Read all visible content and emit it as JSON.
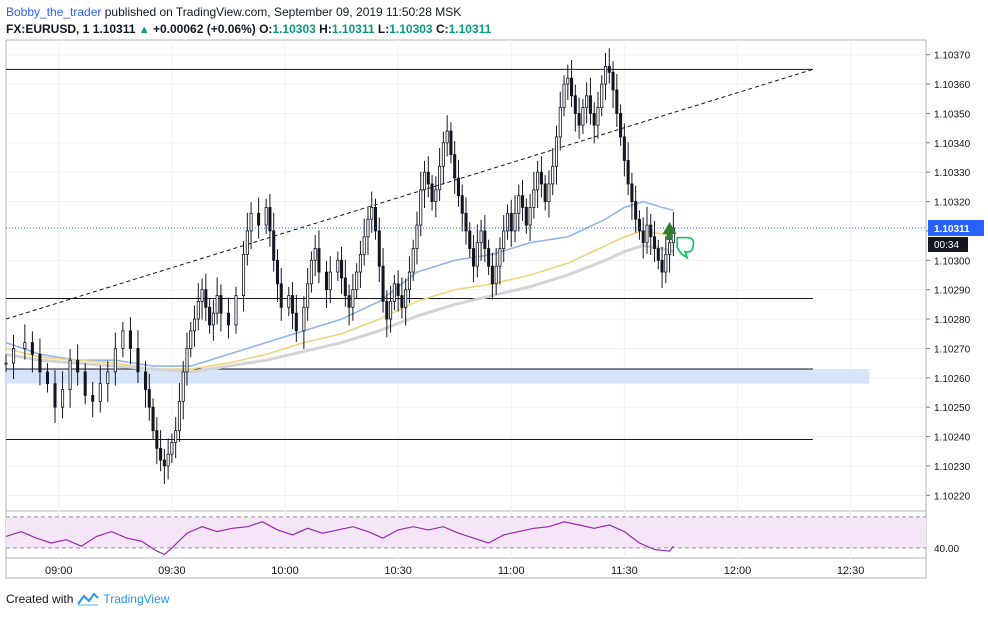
{
  "header": {
    "author": "Bobby_the_trader",
    "published": "published on TradingView.com, September 09, 2019 11:50:28 MSK",
    "symbol": "FX:EURUSD, 1",
    "last": "1.10311",
    "change": "+0.00062 (+0.06%)",
    "o_label": "O:",
    "o_value": "1.10303",
    "h_label": "H:",
    "h_value": "1.10311",
    "l_label": "L:",
    "l_value": "1.10303",
    "c_label": "C:",
    "c_value": "1.10311"
  },
  "footer": {
    "created_with": "Created with",
    "brand": "TradingView"
  },
  "colors": {
    "up": "#131722",
    "down": "#131722",
    "upFill": "#ffffff",
    "downFill": "#131722",
    "ma_fast": "#90b8e6",
    "ma_mid": "#f2d27a",
    "ma_slow": "#d4d4d4",
    "zone": "#c9dcf8",
    "rsi_line": "#9c27b0",
    "rsi_bg": "#f3e5f5",
    "price_label": "#2962ff",
    "arrow": "#2e7d32",
    "thumb": "#00c853"
  },
  "chart_data": {
    "type": "candlestick",
    "interval_minutes": 1,
    "ylim": [
      1.10215,
      1.10375
    ],
    "y_ticks": [
      "1.10370",
      "1.10360",
      "1.10350",
      "1.10340",
      "1.10330",
      "1.10320",
      "1.10310",
      "1.10300",
      "1.10290",
      "1.10280",
      "1.10270",
      "1.10260",
      "1.10250",
      "1.10240",
      "1.10230",
      "1.10220"
    ],
    "x_ticks": [
      "09:00",
      "09:30",
      "10:00",
      "10:30",
      "11:00",
      "11:30",
      "12:00",
      "12:30"
    ],
    "x_tick_minutes": [
      0,
      30,
      60,
      90,
      120,
      150,
      180,
      210
    ],
    "xlim_minutes": [
      -14,
      230
    ],
    "last_price_label": "1.10311",
    "countdown_label": "00:34",
    "rsi_label": "40.00",
    "close_path": [
      [
        -14,
        1.10265
      ],
      [
        -12,
        1.1027
      ],
      [
        -9,
        1.10272
      ],
      [
        -7,
        1.10268
      ],
      [
        -5,
        1.10262
      ],
      [
        -3,
        1.10258
      ],
      [
        -1,
        1.1025
      ],
      [
        1,
        1.10256
      ],
      [
        3,
        1.10266
      ],
      [
        5,
        1.10262
      ],
      [
        7,
        1.10254
      ],
      [
        9,
        1.10252
      ],
      [
        11,
        1.10258
      ],
      [
        13,
        1.10262
      ],
      [
        15,
        1.1027
      ],
      [
        17,
        1.10276
      ],
      [
        19,
        1.1027
      ],
      [
        21,
        1.10262
      ],
      [
        23,
        1.10256
      ],
      [
        24,
        1.1025
      ],
      [
        25,
        1.10242
      ],
      [
        26,
        1.10236
      ],
      [
        27,
        1.10232
      ],
      [
        28,
        1.1023
      ],
      [
        29,
        1.10234
      ],
      [
        30,
        1.10238
      ],
      [
        31,
        1.10242
      ],
      [
        32,
        1.10252
      ],
      [
        33,
        1.10262
      ],
      [
        34,
        1.1027
      ],
      [
        35,
        1.10276
      ],
      [
        36,
        1.1028
      ],
      [
        37,
        1.10286
      ],
      [
        38,
        1.1029
      ],
      [
        39,
        1.10284
      ],
      [
        40,
        1.10278
      ],
      [
        41,
        1.10282
      ],
      [
        42,
        1.10288
      ],
      [
        43,
        1.10282
      ],
      [
        45,
        1.10278
      ],
      [
        47,
        1.10288
      ],
      [
        49,
        1.10302
      ],
      [
        50,
        1.1031
      ],
      [
        51,
        1.10316
      ],
      [
        53,
        1.10312
      ],
      [
        55,
        1.10318
      ],
      [
        56,
        1.1031
      ],
      [
        57,
        1.103
      ],
      [
        58,
        1.10292
      ],
      [
        59,
        1.10284
      ],
      [
        61,
        1.10288
      ],
      [
        62,
        1.10282
      ],
      [
        63,
        1.10276
      ],
      [
        65,
        1.10284
      ],
      [
        66,
        1.10292
      ],
      [
        67,
        1.103
      ],
      [
        68,
        1.10304
      ],
      [
        69,
        1.10296
      ],
      [
        71,
        1.1029
      ],
      [
        72,
        1.10296
      ],
      [
        74,
        1.103
      ],
      [
        75,
        1.10294
      ],
      [
        76,
        1.10288
      ],
      [
        77,
        1.10284
      ],
      [
        78,
        1.1029
      ],
      [
        79,
        1.10296
      ],
      [
        80,
        1.10302
      ],
      [
        81,
        1.10308
      ],
      [
        82,
        1.10314
      ],
      [
        83,
        1.10318
      ],
      [
        84,
        1.1031
      ],
      [
        85,
        1.10298
      ],
      [
        86,
        1.10286
      ],
      [
        87,
        1.1028
      ],
      [
        88,
        1.10286
      ],
      [
        89,
        1.10292
      ],
      [
        90,
        1.10288
      ],
      [
        91,
        1.10284
      ],
      [
        92,
        1.1029
      ],
      [
        93,
        1.10296
      ],
      [
        94,
        1.10304
      ],
      [
        95,
        1.10312
      ],
      [
        96,
        1.10324
      ],
      [
        97,
        1.1033
      ],
      [
        98,
        1.10326
      ],
      [
        99,
        1.1032
      ],
      [
        100,
        1.10324
      ],
      [
        101,
        1.10332
      ],
      [
        102,
        1.1034
      ],
      [
        103,
        1.10344
      ],
      [
        104,
        1.10336
      ],
      [
        105,
        1.10328
      ],
      [
        106,
        1.10322
      ],
      [
        107,
        1.10316
      ],
      [
        108,
        1.1031
      ],
      [
        109,
        1.10304
      ],
      [
        110,
        1.10298
      ],
      [
        111,
        1.10306
      ],
      [
        112,
        1.1031
      ],
      [
        113,
        1.10304
      ],
      [
        114,
        1.10298
      ],
      [
        115,
        1.10292
      ],
      [
        116,
        1.10298
      ],
      [
        117,
        1.10304
      ],
      [
        118,
        1.1031
      ],
      [
        119,
        1.10316
      ],
      [
        120,
        1.1031
      ],
      [
        121,
        1.10316
      ],
      [
        122,
        1.10322
      ],
      [
        123,
        1.10318
      ],
      [
        124,
        1.10312
      ],
      [
        125,
        1.10318
      ],
      [
        126,
        1.10324
      ],
      [
        127,
        1.1033
      ],
      [
        128,
        1.10326
      ],
      [
        129,
        1.1032
      ],
      [
        130,
        1.10326
      ],
      [
        131,
        1.10332
      ],
      [
        132,
        1.10342
      ],
      [
        133,
        1.10352
      ],
      [
        134,
        1.1036
      ],
      [
        135,
        1.10362
      ],
      [
        136,
        1.10356
      ],
      [
        137,
        1.1035
      ],
      [
        138,
        1.10346
      ],
      [
        139,
        1.10352
      ],
      [
        140,
        1.10356
      ],
      [
        141,
        1.1035
      ],
      [
        142,
        1.10346
      ],
      [
        143,
        1.10352
      ],
      [
        144,
        1.1036
      ],
      [
        145,
        1.10366
      ],
      [
        146,
        1.10364
      ],
      [
        147,
        1.10358
      ],
      [
        148,
        1.1035
      ],
      [
        149,
        1.10342
      ],
      [
        150,
        1.10334
      ],
      [
        151,
        1.10326
      ],
      [
        152,
        1.1032
      ],
      [
        153,
        1.10314
      ],
      [
        154,
        1.1031
      ],
      [
        155,
        1.10306
      ],
      [
        156,
        1.10312
      ],
      [
        157,
        1.10308
      ],
      [
        158,
        1.10304
      ],
      [
        159,
        1.103
      ],
      [
        160,
        1.10296
      ],
      [
        161,
        1.10302
      ],
      [
        162,
        1.10306
      ],
      [
        163,
        1.10311
      ]
    ],
    "series": [
      {
        "name": "MA fast",
        "color_key": "ma_fast",
        "points": [
          [
            -14,
            1.10272
          ],
          [
            -5,
            1.10268
          ],
          [
            5,
            1.10266
          ],
          [
            15,
            1.10266
          ],
          [
            25,
            1.10264
          ],
          [
            35,
            1.10264
          ],
          [
            45,
            1.10268
          ],
          [
            55,
            1.10272
          ],
          [
            65,
            1.10276
          ],
          [
            75,
            1.1028
          ],
          [
            85,
            1.10286
          ],
          [
            95,
            1.10296
          ],
          [
            105,
            1.103
          ],
          [
            115,
            1.10302
          ],
          [
            125,
            1.10306
          ],
          [
            135,
            1.10308
          ],
          [
            145,
            1.10314
          ],
          [
            150,
            1.10318
          ],
          [
            155,
            1.1032
          ],
          [
            160,
            1.10318
          ],
          [
            163,
            1.10317
          ]
        ]
      },
      {
        "name": "MA mid",
        "color_key": "ma_mid",
        "points": [
          [
            -14,
            1.1027
          ],
          [
            -5,
            1.10267
          ],
          [
            5,
            1.10266
          ],
          [
            15,
            1.10265
          ],
          [
            25,
            1.10263
          ],
          [
            35,
            1.10263
          ],
          [
            45,
            1.10265
          ],
          [
            55,
            1.10268
          ],
          [
            65,
            1.10272
          ],
          [
            75,
            1.10275
          ],
          [
            85,
            1.1028
          ],
          [
            95,
            1.10286
          ],
          [
            105,
            1.1029
          ],
          [
            115,
            1.10292
          ],
          [
            125,
            1.10295
          ],
          [
            135,
            1.10299
          ],
          [
            145,
            1.10305
          ],
          [
            150,
            1.10308
          ],
          [
            155,
            1.1031
          ],
          [
            160,
            1.10309
          ],
          [
            163,
            1.10308
          ]
        ]
      },
      {
        "name": "MA slow",
        "color_key": "ma_slow",
        "points": [
          [
            -14,
            1.10268
          ],
          [
            -5,
            1.10266
          ],
          [
            5,
            1.10265
          ],
          [
            15,
            1.10264
          ],
          [
            25,
            1.10263
          ],
          [
            35,
            1.10262
          ],
          [
            45,
            1.10264
          ],
          [
            55,
            1.10266
          ],
          [
            65,
            1.10269
          ],
          [
            75,
            1.10272
          ],
          [
            85,
            1.10276
          ],
          [
            95,
            1.10281
          ],
          [
            105,
            1.10285
          ],
          [
            115,
            1.10288
          ],
          [
            125,
            1.10291
          ],
          [
            135,
            1.10295
          ],
          [
            145,
            1.103
          ],
          [
            150,
            1.10303
          ],
          [
            155,
            1.10305
          ],
          [
            160,
            1.10304
          ],
          [
            163,
            1.10303
          ]
        ]
      }
    ],
    "horizontal_lines": [
      {
        "y": 1.10365,
        "x_from": -14,
        "x_to": 200
      },
      {
        "y": 1.10287,
        "x_from": -14,
        "x_to": 200
      },
      {
        "y": 1.10263,
        "x_from": -14,
        "x_to": 200
      },
      {
        "y": 1.10239,
        "x_from": -14,
        "x_to": 200
      }
    ],
    "zone": {
      "y_low": 1.10258,
      "y_high": 1.10263,
      "x_from": -14,
      "x_to": 215
    },
    "trendline": {
      "x1": -14,
      "y1": 1.1028,
      "x2": 200,
      "y2": 1.10365
    },
    "last_price_line": 1.10311,
    "rsi": {
      "ylim": [
        28,
        82
      ],
      "band_low": 38,
      "band_high": 76,
      "values": [
        [
          -14,
          52
        ],
        [
          -10,
          58
        ],
        [
          -6,
          50
        ],
        [
          -2,
          44
        ],
        [
          2,
          48
        ],
        [
          6,
          40
        ],
        [
          10,
          52
        ],
        [
          14,
          58
        ],
        [
          18,
          50
        ],
        [
          22,
          46
        ],
        [
          26,
          34
        ],
        [
          28,
          30
        ],
        [
          30,
          38
        ],
        [
          34,
          56
        ],
        [
          38,
          64
        ],
        [
          42,
          58
        ],
        [
          46,
          62
        ],
        [
          50,
          64
        ],
        [
          54,
          70
        ],
        [
          58,
          60
        ],
        [
          62,
          54
        ],
        [
          66,
          62
        ],
        [
          70,
          56
        ],
        [
          74,
          60
        ],
        [
          78,
          64
        ],
        [
          82,
          58
        ],
        [
          86,
          50
        ],
        [
          90,
          60
        ],
        [
          94,
          64
        ],
        [
          98,
          60
        ],
        [
          102,
          64
        ],
        [
          106,
          56
        ],
        [
          110,
          50
        ],
        [
          114,
          44
        ],
        [
          118,
          54
        ],
        [
          122,
          58
        ],
        [
          126,
          62
        ],
        [
          130,
          64
        ],
        [
          134,
          70
        ],
        [
          138,
          66
        ],
        [
          142,
          62
        ],
        [
          146,
          66
        ],
        [
          150,
          58
        ],
        [
          154,
          44
        ],
        [
          158,
          36
        ],
        [
          162,
          34
        ],
        [
          163,
          40
        ]
      ]
    }
  }
}
